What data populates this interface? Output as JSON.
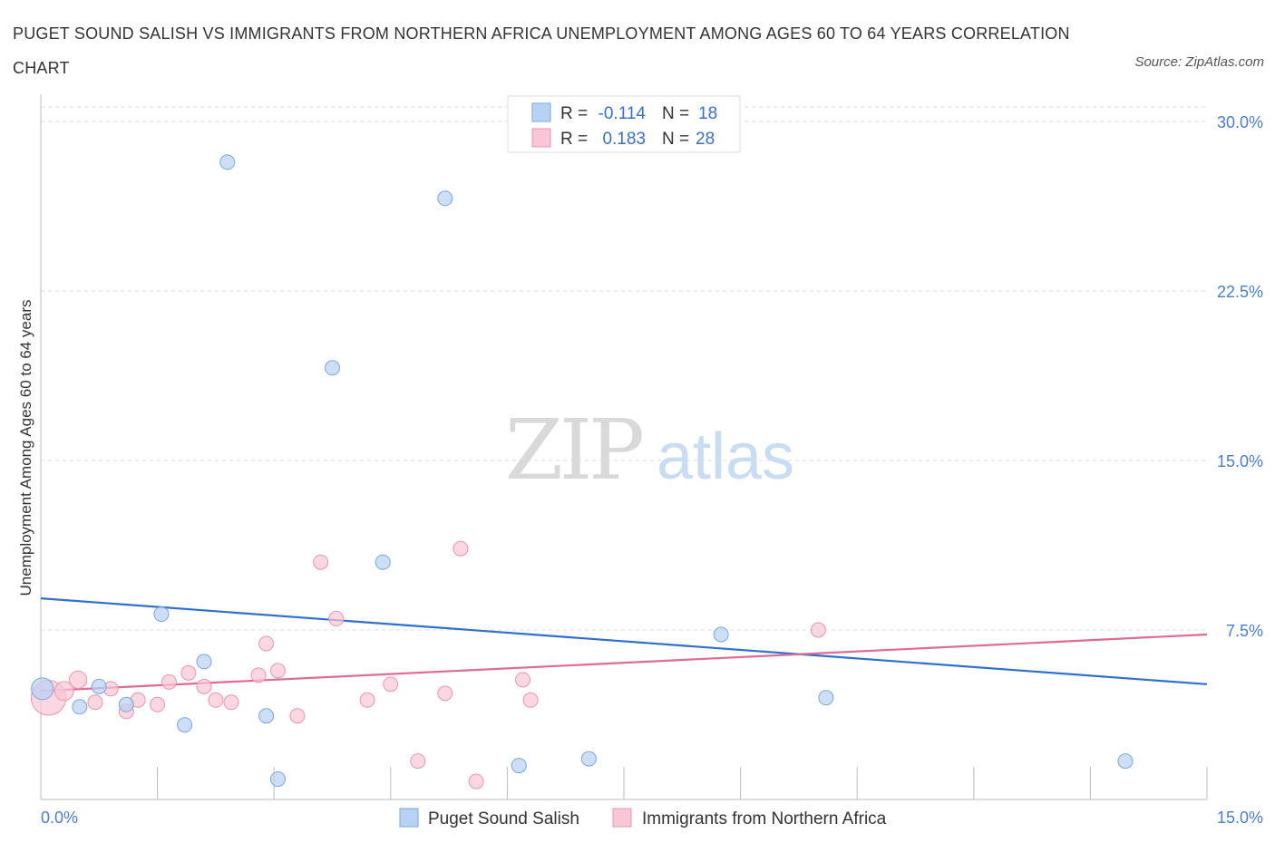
{
  "title": "PUGET SOUND SALISH VS IMMIGRANTS FROM NORTHERN AFRICA UNEMPLOYMENT AMONG AGES 60 TO 64 YEARS CORRELATION CHART",
  "source": "Source: ZipAtlas.com",
  "watermark": {
    "zip": "ZIP",
    "atlas": "atlas"
  },
  "colors": {
    "blue_fill": "#b8d2f3",
    "blue_stroke": "#7aa6e0",
    "blue_line": "#2f6fcf",
    "pink_fill": "#f8c6d4",
    "pink_stroke": "#e896b0",
    "pink_line": "#e06a93",
    "grid": "#dddddd",
    "axis": "#bbbbbb",
    "tick_label": "#4a7ec8"
  },
  "legend": {
    "rows": [
      {
        "r_label": "R =",
        "r_value": "-0.114",
        "n_label": "N =",
        "n_value": "18",
        "color": "blue"
      },
      {
        "r_label": "R =",
        "r_value": "0.183",
        "n_label": "N =",
        "n_value": "28",
        "color": "pink"
      }
    ]
  },
  "chart_data": {
    "type": "scatter",
    "title": "PUGET SOUND SALISH VS IMMIGRANTS FROM NORTHERN AFRICA UNEMPLOYMENT AMONG AGES 60 TO 64 YEARS CORRELATION CHART",
    "xlabel": "",
    "ylabel": "Unemployment Among Ages 60 to 64 years",
    "xlim": [
      0,
      15
    ],
    "ylim": [
      0,
      30
    ],
    "x_tick_labels": [
      {
        "value": 0,
        "label": "0.0%"
      },
      {
        "value": 15,
        "label": "15.0%"
      }
    ],
    "y_tick_labels": [
      {
        "value": 7.5,
        "label": "7.5%"
      },
      {
        "value": 15,
        "label": "15.0%"
      },
      {
        "value": 22.5,
        "label": "22.5%"
      },
      {
        "value": 30,
        "label": "30.0%"
      }
    ],
    "legend_position": "top-center",
    "series": [
      {
        "name": "Puget Sound Salish",
        "color": "blue",
        "points": [
          {
            "x": 0.02,
            "y": 4.9,
            "size": 1.5
          },
          {
            "x": 0.5,
            "y": 4.1,
            "size": 1
          },
          {
            "x": 0.75,
            "y": 5.0,
            "size": 1
          },
          {
            "x": 1.1,
            "y": 4.2,
            "size": 1
          },
          {
            "x": 1.55,
            "y": 8.2,
            "size": 1
          },
          {
            "x": 1.85,
            "y": 3.3,
            "size": 1
          },
          {
            "x": 2.1,
            "y": 6.1,
            "size": 1
          },
          {
            "x": 2.4,
            "y": 28.2,
            "size": 1
          },
          {
            "x": 2.9,
            "y": 3.7,
            "size": 1
          },
          {
            "x": 3.05,
            "y": 0.9,
            "size": 1
          },
          {
            "x": 3.75,
            "y": 19.1,
            "size": 1
          },
          {
            "x": 4.4,
            "y": 10.5,
            "size": 1
          },
          {
            "x": 5.2,
            "y": 26.6,
            "size": 1
          },
          {
            "x": 6.15,
            "y": 1.5,
            "size": 1
          },
          {
            "x": 7.05,
            "y": 1.8,
            "size": 1
          },
          {
            "x": 8.75,
            "y": 7.3,
            "size": 1
          },
          {
            "x": 10.1,
            "y": 4.5,
            "size": 1
          },
          {
            "x": 13.95,
            "y": 1.7,
            "size": 1
          }
        ]
      },
      {
        "name": "Immigrants from Northern Africa",
        "color": "pink",
        "points": [
          {
            "x": 0.1,
            "y": 4.5,
            "size": 2.4
          },
          {
            "x": 0.3,
            "y": 4.8,
            "size": 1.3
          },
          {
            "x": 0.48,
            "y": 5.3,
            "size": 1.2
          },
          {
            "x": 0.7,
            "y": 4.3,
            "size": 1
          },
          {
            "x": 0.9,
            "y": 4.9,
            "size": 1
          },
          {
            "x": 1.1,
            "y": 3.9,
            "size": 1
          },
          {
            "x": 1.25,
            "y": 4.4,
            "size": 1
          },
          {
            "x": 1.5,
            "y": 4.2,
            "size": 1
          },
          {
            "x": 1.65,
            "y": 5.2,
            "size": 1
          },
          {
            "x": 1.9,
            "y": 5.6,
            "size": 1
          },
          {
            "x": 2.1,
            "y": 5.0,
            "size": 1
          },
          {
            "x": 2.25,
            "y": 4.4,
            "size": 1
          },
          {
            "x": 2.45,
            "y": 4.3,
            "size": 1
          },
          {
            "x": 2.8,
            "y": 5.5,
            "size": 1
          },
          {
            "x": 2.9,
            "y": 6.9,
            "size": 1
          },
          {
            "x": 3.05,
            "y": 5.7,
            "size": 1
          },
          {
            "x": 3.3,
            "y": 3.7,
            "size": 1
          },
          {
            "x": 3.6,
            "y": 10.5,
            "size": 1
          },
          {
            "x": 3.8,
            "y": 8.0,
            "size": 1
          },
          {
            "x": 4.2,
            "y": 4.4,
            "size": 1
          },
          {
            "x": 4.5,
            "y": 5.1,
            "size": 1
          },
          {
            "x": 4.85,
            "y": 1.7,
            "size": 1
          },
          {
            "x": 5.2,
            "y": 4.7,
            "size": 1
          },
          {
            "x": 5.4,
            "y": 11.1,
            "size": 1
          },
          {
            "x": 5.6,
            "y": 0.8,
            "size": 1
          },
          {
            "x": 6.2,
            "y": 5.3,
            "size": 1
          },
          {
            "x": 6.3,
            "y": 4.4,
            "size": 1
          },
          {
            "x": 10.0,
            "y": 7.5,
            "size": 1
          }
        ]
      }
    ],
    "trend_lines": [
      {
        "series": "Puget Sound Salish",
        "x": [
          0,
          15
        ],
        "y": [
          8.9,
          5.1
        ]
      },
      {
        "series": "Immigrants from Northern Africa",
        "x": [
          0,
          15
        ],
        "y": [
          4.8,
          7.3
        ]
      }
    ]
  }
}
